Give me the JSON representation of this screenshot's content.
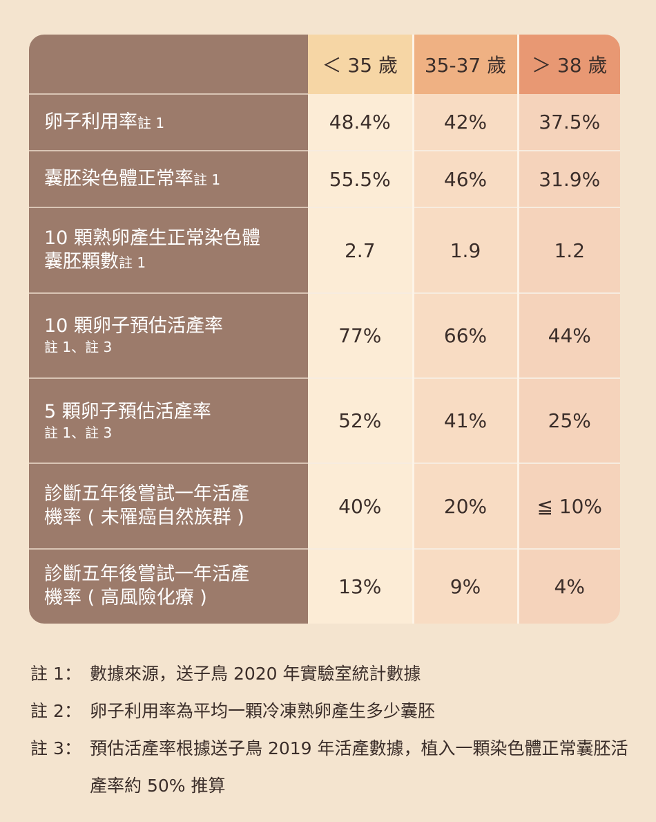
{
  "table": {
    "headers": [
      "＜ 35 歲",
      "35-37 歲",
      "＞ 38 歲"
    ],
    "rows": [
      {
        "label": "卵子利用率",
        "note": "註 1",
        "sub": "",
        "values": [
          "48.4%",
          "42%",
          "37.5%"
        ]
      },
      {
        "label": "囊胚染色體正常率",
        "note": "註 1",
        "sub": "",
        "values": [
          "55.5%",
          "46%",
          "31.9%"
        ]
      },
      {
        "label_line1": "10 顆熟卵產生正常染色體",
        "label_line2": "囊胚顆數",
        "note": "註 1",
        "values": [
          "2.7",
          "1.9",
          "1.2"
        ]
      },
      {
        "label": "10 顆卵子預估活產率",
        "note": "",
        "sub": "註 1、註 3",
        "values": [
          "77%",
          "66%",
          "44%"
        ]
      },
      {
        "label": "5 顆卵子預估活產率",
        "note": "",
        "sub": "註 1、註 3",
        "values": [
          "52%",
          "41%",
          "25%"
        ]
      },
      {
        "label_line1": "診斷五年後嘗試一年活產",
        "label_line2": "機率 ( 未罹癌自然族群 )",
        "values": [
          "40%",
          "20%",
          "≦ 10%"
        ]
      },
      {
        "label_line1": "診斷五年後嘗試一年活產",
        "label_line2": "機率 ( 高風險化療 )",
        "values": [
          "13%",
          "9%",
          "4%"
        ]
      }
    ]
  },
  "notes": [
    {
      "key": "註 1：",
      "text": "數據來源，送子鳥 2020 年實驗室統計數據"
    },
    {
      "key": "註 2：",
      "text": "卵子利用率為平均一顆冷凍熟卵產生多少囊胚"
    },
    {
      "key": "註 3：",
      "text": "預估活產率根據送子鳥 2019 年活產數據，植入一顆染色體正常囊胚活產率約 50% 推算"
    }
  ],
  "colors": {
    "background": "#f4e4cf",
    "label_column": "#9c7b6b",
    "header_under35": "#f6d6a5",
    "header_35_37": "#efb183",
    "header_over38": "#e89873"
  }
}
